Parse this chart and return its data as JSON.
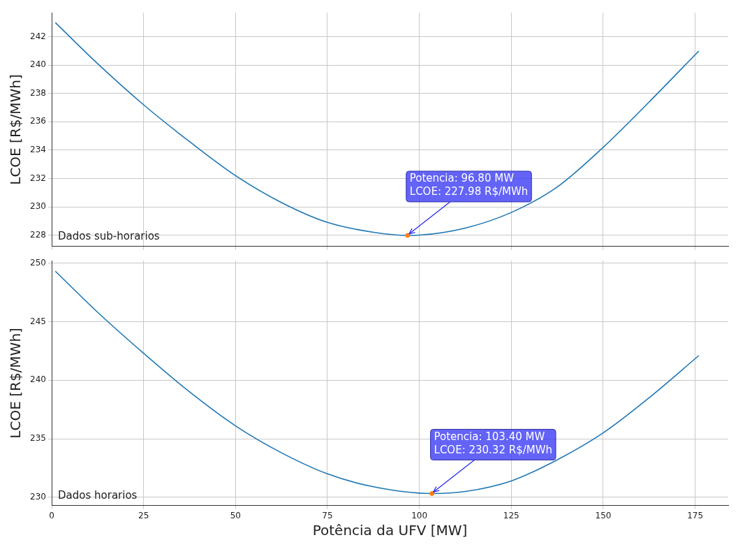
{
  "chart_data": [
    {
      "type": "line",
      "ylabel": "LCOE [R$/MWh]",
      "xlim": [
        0,
        184
      ],
      "xticks": [
        0,
        25,
        50,
        75,
        100,
        125,
        150,
        175
      ],
      "ylim": [
        227.2,
        243.7
      ],
      "yticks": [
        228,
        230,
        232,
        234,
        236,
        238,
        240,
        242
      ],
      "grid": true,
      "tick_labels": "y",
      "x": [
        1,
        12.5,
        25,
        37.5,
        50,
        62.5,
        75,
        87.5,
        96.8,
        100,
        112.5,
        125,
        137.5,
        150,
        162.5,
        176
      ],
      "series": [
        {
          "color": "#1f77b4",
          "values": [
            243.0,
            240.1,
            237.2,
            234.6,
            232.2,
            230.3,
            228.9,
            228.2,
            227.98,
            228.0,
            228.5,
            229.6,
            231.4,
            234.2,
            237.4,
            241.0
          ]
        },
        {
          "type": "scatter",
          "x": [
            96.8
          ],
          "color": "#ff7f0e",
          "values": [
            227.98
          ]
        }
      ],
      "annotations": [
        {
          "text": "Potencia: 96.80 MW\nLCOE: 227.98 R$/MWh",
          "x": 96.8,
          "y": 227.98
        },
        "Dados sub-horarios"
      ]
    },
    {
      "type": "line",
      "xlabel": "Potência da UFV [MW]",
      "ylabel": "LCOE [R$/MWh]",
      "xlim": [
        0,
        184
      ],
      "xticks": [
        0,
        25,
        50,
        75,
        100,
        125,
        150,
        175
      ],
      "ylim": [
        229.3,
        250.2
      ],
      "yticks": [
        230,
        235,
        240,
        245,
        250
      ],
      "grid": true,
      "x": [
        1,
        12.5,
        25,
        37.5,
        50,
        62.5,
        75,
        87.5,
        103.4,
        112.5,
        125,
        137.5,
        150,
        162.5,
        176
      ],
      "series": [
        {
          "color": "#1f77b4",
          "values": [
            249.3,
            245.8,
            242.3,
            239.0,
            236.1,
            233.8,
            232.0,
            230.9,
            230.32,
            230.5,
            231.4,
            233.2,
            235.5,
            238.5,
            242.1
          ]
        },
        {
          "type": "scatter",
          "x": [
            103.4
          ],
          "color": "#ff7f0e",
          "values": [
            230.32
          ]
        }
      ],
      "annotations": [
        {
          "text": "Potencia: 103.40 MW\nLCOE: 230.32 R$/MWh",
          "x": 103.4,
          "y": 230.32
        },
        "Dados horarios"
      ]
    }
  ]
}
